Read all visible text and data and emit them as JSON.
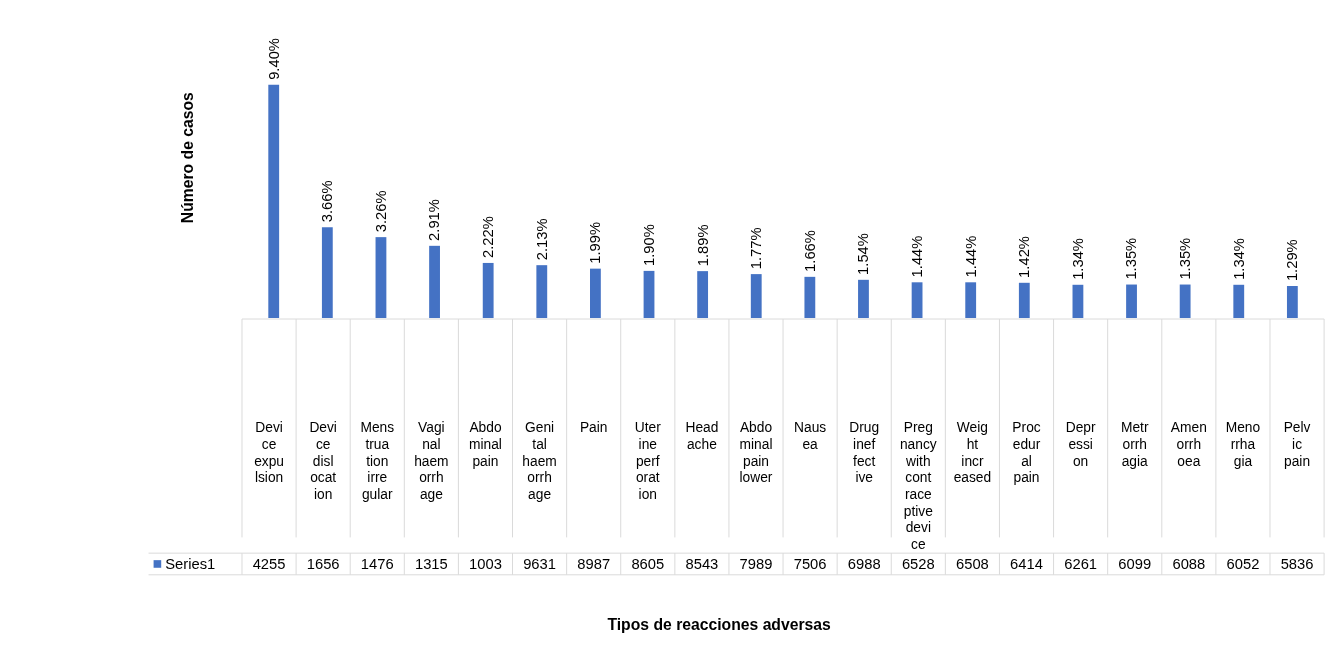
{
  "chart_data": {
    "type": "bar",
    "xlabel": "Tipos de reacciones adversas",
    "ylabel": "Número de casos",
    "legend": "bottom",
    "categories": [
      "Device expulsion",
      "Device dislocation",
      "Menstruation irregular",
      "Vaginal haemorrhage",
      "Abdominal pain",
      "Genital haemorrhage",
      "Pain",
      "Uterine perforation",
      "Headache",
      "Abdominal pain lower",
      "Nausea",
      "Drug ineffective",
      "Pregnancy with contraceptive device",
      "Weight increased",
      "Procedural pain",
      "Depression",
      "Metrorrhagia",
      "Amenorrhoea",
      "Menorrhagia",
      "Pelvic pain"
    ],
    "series": [
      {
        "name": "Series1",
        "color": "#4472c4",
        "values": [
          9.4,
          3.66,
          3.26,
          2.91,
          2.22,
          2.13,
          1.99,
          1.9,
          1.89,
          1.77,
          1.66,
          1.54,
          1.44,
          1.44,
          1.42,
          1.34,
          1.35,
          1.35,
          1.34,
          1.29
        ],
        "value_labels": [
          "9.40%",
          "3.66%",
          "3.26%",
          "2.91%",
          "2.22%",
          "2.13%",
          "1.99%",
          "1.90%",
          "1.89%",
          "1.77%",
          "1.66%",
          "1.54%",
          "1.44%",
          "1.44%",
          "1.42%",
          "1.34%",
          "1.35%",
          "1.35%",
          "1.34%",
          "1.29%"
        ]
      }
    ],
    "annotations": [
      "4255",
      "1656",
      "1476",
      "1315",
      "1003",
      "9631",
      "8987",
      "8605",
      "8543",
      "7989",
      "7506",
      "6988",
      "6528",
      "6508",
      "6414",
      "6261",
      "6099",
      "6088",
      "6052",
      "5836"
    ]
  }
}
